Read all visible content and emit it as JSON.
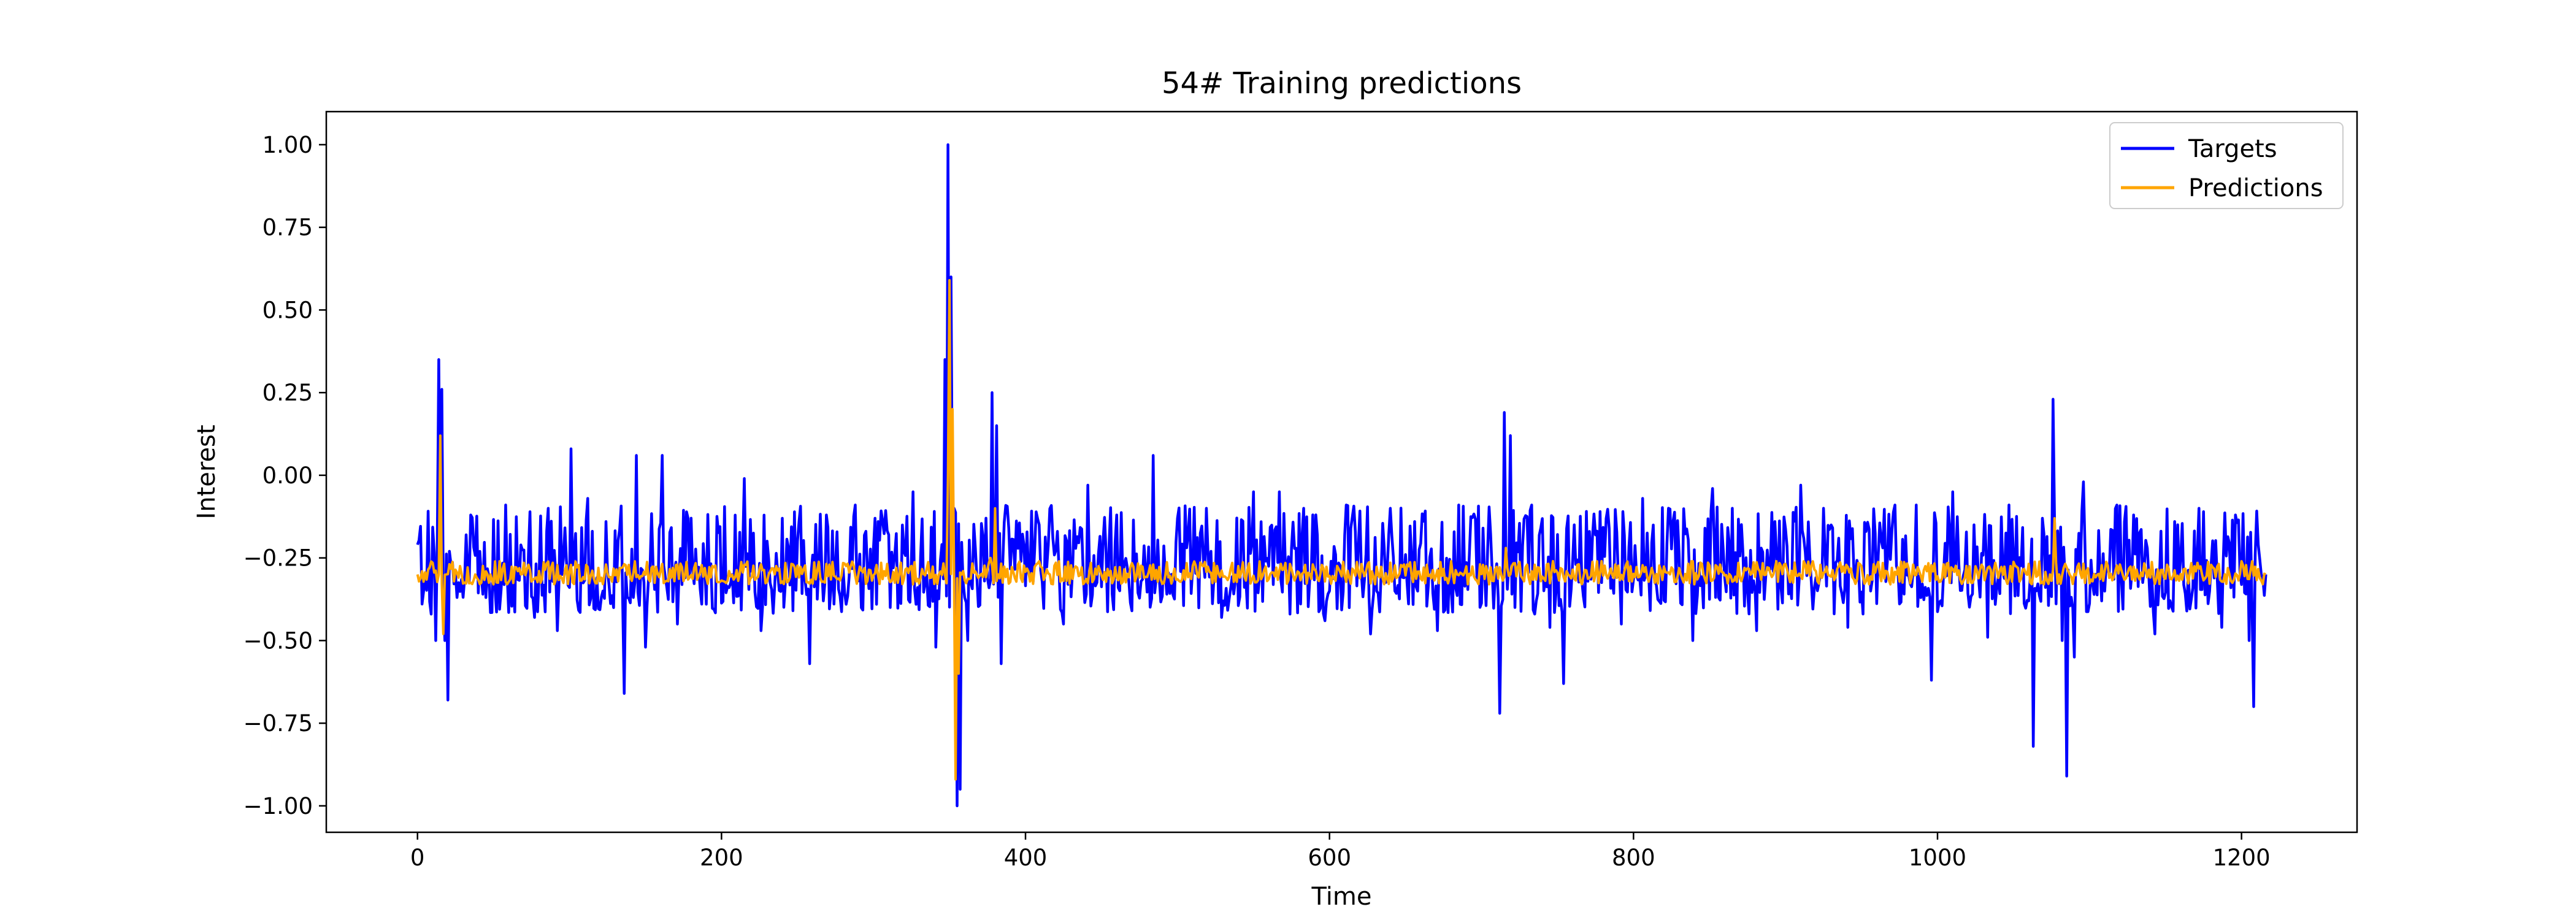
{
  "chart_data": {
    "type": "line",
    "title": "54# Training predictions",
    "xlabel": "Time",
    "ylabel": "Interest",
    "xlim": [
      -60,
      1276
    ],
    "ylim": [
      -1.08,
      1.1
    ],
    "xticks": [
      0,
      200,
      400,
      600,
      800,
      1000,
      1200
    ],
    "yticks": [
      1.0,
      0.75,
      0.5,
      0.25,
      0.0,
      -0.25,
      -0.5,
      -0.75,
      -1.0
    ],
    "ytick_labels": [
      "1.00",
      "0.75",
      "0.50",
      "0.25",
      "0.00",
      "−0.25",
      "−0.50",
      "−0.75",
      "−1.00"
    ],
    "legend_position": "top-right",
    "n_points": 1217,
    "series": [
      {
        "name": "Targets",
        "color": "#0000ff",
        "baseline": -0.3,
        "spikes": [
          [
            0,
            -0.21
          ],
          [
            5,
            -0.3
          ],
          [
            9,
            -0.42
          ],
          [
            12,
            -0.5
          ],
          [
            14,
            0.35
          ],
          [
            16,
            0.26
          ],
          [
            18,
            -0.5
          ],
          [
            20,
            -0.68
          ],
          [
            35,
            -0.12
          ],
          [
            58,
            -0.09
          ],
          [
            77,
            -0.43
          ],
          [
            86,
            -0.1
          ],
          [
            92,
            -0.47
          ],
          [
            101,
            0.08
          ],
          [
            112,
            -0.07
          ],
          [
            124,
            -0.14
          ],
          [
            136,
            -0.66
          ],
          [
            144,
            0.06
          ],
          [
            150,
            -0.52
          ],
          [
            161,
            0.06
          ],
          [
            171,
            -0.45
          ],
          [
            178,
            -0.13
          ],
          [
            190,
            -0.39
          ],
          [
            215,
            -0.01
          ],
          [
            226,
            -0.47
          ],
          [
            240,
            -0.13
          ],
          [
            258,
            -0.57
          ],
          [
            269,
            -0.12
          ],
          [
            288,
            -0.09
          ],
          [
            303,
            -0.14
          ],
          [
            311,
            -0.4
          ],
          [
            326,
            -0.05
          ],
          [
            341,
            -0.52
          ],
          [
            347,
            0.35
          ],
          [
            349,
            1.0
          ],
          [
            351,
            0.6
          ],
          [
            353,
            -0.1
          ],
          [
            355,
            -1.0
          ],
          [
            357,
            -0.95
          ],
          [
            362,
            -0.5
          ],
          [
            367,
            -0.22
          ],
          [
            378,
            0.25
          ],
          [
            381,
            0.15
          ],
          [
            384,
            -0.57
          ],
          [
            409,
            -0.15
          ],
          [
            425,
            -0.45
          ],
          [
            441,
            -0.03
          ],
          [
            460,
            -0.12
          ],
          [
            470,
            -0.41
          ],
          [
            484,
            0.06
          ],
          [
            500,
            -0.13
          ],
          [
            519,
            -0.1
          ],
          [
            529,
            -0.43
          ],
          [
            550,
            -0.05
          ],
          [
            567,
            -0.05
          ],
          [
            583,
            -0.1
          ],
          [
            597,
            -0.44
          ],
          [
            611,
            -0.09
          ],
          [
            627,
            -0.48
          ],
          [
            640,
            -0.1
          ],
          [
            656,
            -0.14
          ],
          [
            671,
            -0.47
          ],
          [
            685,
            -0.09
          ],
          [
            701,
            -0.16
          ],
          [
            712,
            -0.72
          ],
          [
            715,
            0.19
          ],
          [
            719,
            0.12
          ],
          [
            722,
            -0.4
          ],
          [
            733,
            -0.09
          ],
          [
            745,
            -0.46
          ],
          [
            754,
            -0.63
          ],
          [
            761,
            -0.15
          ],
          [
            778,
            -0.11
          ],
          [
            792,
            -0.45
          ],
          [
            806,
            -0.07
          ],
          [
            826,
            -0.14
          ],
          [
            839,
            -0.5
          ],
          [
            852,
            -0.04
          ],
          [
            865,
            -0.1
          ],
          [
            881,
            -0.47
          ],
          [
            893,
            -0.14
          ],
          [
            910,
            -0.03
          ],
          [
            925,
            -0.1
          ],
          [
            941,
            -0.46
          ],
          [
            953,
            -0.17
          ],
          [
            972,
            -0.09
          ],
          [
            986,
            -0.09
          ],
          [
            996,
            -0.62
          ],
          [
            1010,
            -0.05
          ],
          [
            1024,
            -0.15
          ],
          [
            1033,
            -0.49
          ],
          [
            1047,
            -0.09
          ],
          [
            1063,
            -0.82
          ],
          [
            1069,
            -0.13
          ],
          [
            1076,
            0.23
          ],
          [
            1082,
            -0.5
          ],
          [
            1085,
            -0.91
          ],
          [
            1090,
            -0.55
          ],
          [
            1096,
            -0.02
          ],
          [
            1108,
            -0.38
          ],
          [
            1118,
            -0.09
          ],
          [
            1129,
            -0.12
          ],
          [
            1143,
            -0.48
          ],
          [
            1156,
            -0.14
          ],
          [
            1172,
            -0.1
          ],
          [
            1187,
            -0.46
          ],
          [
            1196,
            -0.12
          ],
          [
            1205,
            -0.5
          ],
          [
            1208,
            -0.7
          ],
          [
            1211,
            -0.21
          ],
          [
            1214,
            -0.31
          ],
          [
            1216,
            -0.3
          ]
        ],
        "noise_up": 0.21,
        "noise_down": 0.12,
        "noise_seed": 54
      },
      {
        "name": "Predictions",
        "color": "#ffa500",
        "baseline": -0.3,
        "spikes": [
          [
            0,
            -0.3
          ],
          [
            14,
            -0.3
          ],
          [
            15,
            0.12
          ],
          [
            17,
            -0.48
          ],
          [
            19,
            -0.3
          ],
          [
            347,
            -0.3
          ],
          [
            349,
            0.0
          ],
          [
            350,
            0.59
          ],
          [
            352,
            0.2
          ],
          [
            354,
            -0.92
          ],
          [
            356,
            -0.6
          ],
          [
            358,
            -0.3
          ],
          [
            377,
            -0.25
          ],
          [
            380,
            -0.1
          ],
          [
            382,
            -0.3
          ],
          [
            713,
            -0.3
          ],
          [
            716,
            -0.22
          ],
          [
            719,
            -0.3
          ],
          [
            1074,
            -0.3
          ],
          [
            1077,
            -0.13
          ],
          [
            1080,
            -0.3
          ],
          [
            1216,
            -0.3
          ]
        ],
        "noise_up": 0.04,
        "noise_down": 0.03,
        "noise_seed": 7
      }
    ]
  }
}
